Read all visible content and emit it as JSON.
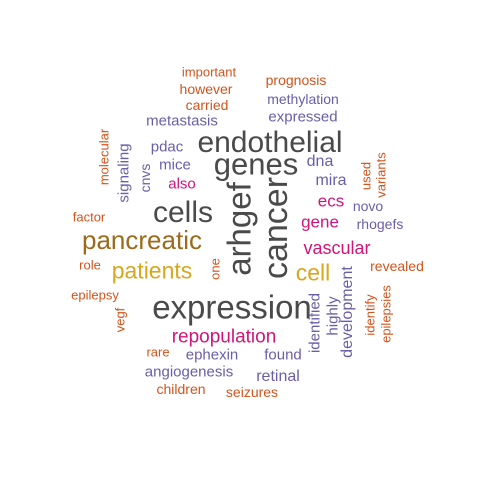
{
  "colors": {
    "dark_gray": "#4a4a4a",
    "brown": "#9c6a1a",
    "gold": "#d9a61c",
    "magenta": "#d1147a",
    "purple": "#6a5ea8",
    "orange": "#d2541c"
  },
  "words": [
    {
      "text": "expression",
      "color": "dark_gray",
      "weight": 6
    },
    {
      "text": "cancer",
      "color": "dark_gray",
      "weight": 6
    },
    {
      "text": "arhgef",
      "color": "dark_gray",
      "weight": 6
    },
    {
      "text": "endothelial",
      "color": "dark_gray",
      "weight": 5
    },
    {
      "text": "genes",
      "color": "dark_gray",
      "weight": 5
    },
    {
      "text": "cells",
      "color": "dark_gray",
      "weight": 5
    },
    {
      "text": "pancreatic",
      "color": "brown",
      "weight": 4
    },
    {
      "text": "patients",
      "color": "gold",
      "weight": 4
    },
    {
      "text": "cell",
      "color": "gold",
      "weight": 4
    },
    {
      "text": "repopulation",
      "color": "magenta",
      "weight": 3
    },
    {
      "text": "vascular",
      "color": "magenta",
      "weight": 3
    },
    {
      "text": "gene",
      "color": "magenta",
      "weight": 3
    },
    {
      "text": "ecs",
      "color": "magenta",
      "weight": 3
    },
    {
      "text": "also",
      "color": "magenta",
      "weight": 2
    },
    {
      "text": "methylation",
      "color": "purple",
      "weight": 2
    },
    {
      "text": "metastasis",
      "color": "purple",
      "weight": 2
    },
    {
      "text": "expressed",
      "color": "purple",
      "weight": 2
    },
    {
      "text": "pdac",
      "color": "purple",
      "weight": 2
    },
    {
      "text": "mice",
      "color": "purple",
      "weight": 2
    },
    {
      "text": "dna",
      "color": "purple",
      "weight": 2
    },
    {
      "text": "mira",
      "color": "purple",
      "weight": 2
    },
    {
      "text": "novo",
      "color": "purple",
      "weight": 2
    },
    {
      "text": "rhogefs",
      "color": "purple",
      "weight": 2
    },
    {
      "text": "signaling",
      "color": "purple",
      "weight": 2
    },
    {
      "text": "cnvs",
      "color": "purple",
      "weight": 2
    },
    {
      "text": "ephexin",
      "color": "purple",
      "weight": 2
    },
    {
      "text": "found",
      "color": "purple",
      "weight": 2
    },
    {
      "text": "angiogenesis",
      "color": "purple",
      "weight": 2
    },
    {
      "text": "retinal",
      "color": "purple",
      "weight": 2
    },
    {
      "text": "identified",
      "color": "purple",
      "weight": 2
    },
    {
      "text": "highly",
      "color": "purple",
      "weight": 2
    },
    {
      "text": "development",
      "color": "purple",
      "weight": 2
    },
    {
      "text": "important",
      "color": "orange",
      "weight": 1
    },
    {
      "text": "however",
      "color": "orange",
      "weight": 1
    },
    {
      "text": "carried",
      "color": "orange",
      "weight": 1
    },
    {
      "text": "prognosis",
      "color": "orange",
      "weight": 1
    },
    {
      "text": "molecular",
      "color": "orange",
      "weight": 1
    },
    {
      "text": "factor",
      "color": "orange",
      "weight": 1
    },
    {
      "text": "role",
      "color": "orange",
      "weight": 1
    },
    {
      "text": "epilepsy",
      "color": "orange",
      "weight": 1
    },
    {
      "text": "vegf",
      "color": "orange",
      "weight": 1
    },
    {
      "text": "one",
      "color": "orange",
      "weight": 1
    },
    {
      "text": "used",
      "color": "orange",
      "weight": 1
    },
    {
      "text": "variants",
      "color": "orange",
      "weight": 1
    },
    {
      "text": "revealed",
      "color": "orange",
      "weight": 1
    },
    {
      "text": "identify",
      "color": "orange",
      "weight": 1
    },
    {
      "text": "epilepsies",
      "color": "orange",
      "weight": 1
    },
    {
      "text": "rare",
      "color": "orange",
      "weight": 1
    },
    {
      "text": "children",
      "color": "orange",
      "weight": 1
    },
    {
      "text": "seizures",
      "color": "orange",
      "weight": 1
    }
  ]
}
